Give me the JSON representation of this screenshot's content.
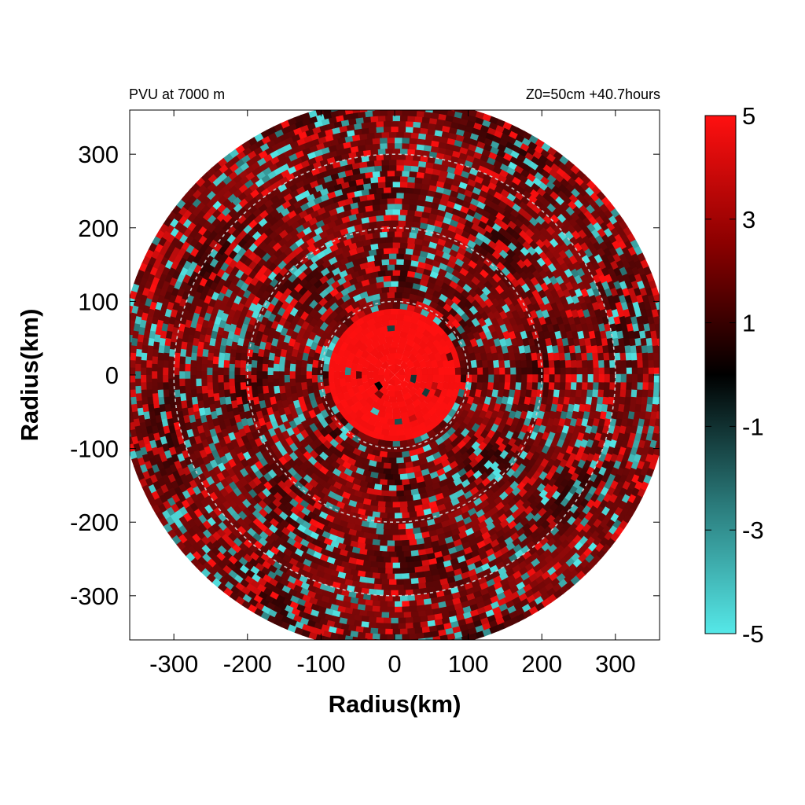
{
  "chart_data": {
    "type": "heatmap",
    "title_left": "PVU at  7000 m",
    "title_right": "Z0=50cm  +40.7hours",
    "xlabel": "Radius(km)",
    "ylabel": "Radius(km)",
    "xlim": [
      -360,
      360
    ],
    "ylim": [
      -360,
      360
    ],
    "x_ticks": [
      -300,
      -200,
      -100,
      0,
      100,
      200,
      300
    ],
    "y_ticks": [
      300,
      200,
      100,
      0,
      -100,
      -200,
      -300
    ],
    "grid": false,
    "domain_radius_km": 375,
    "range_rings_km": [
      100,
      200,
      300
    ],
    "colorbar": {
      "min": -5,
      "max": 5,
      "ticks": [
        5,
        3,
        1,
        -1,
        -3,
        -5
      ],
      "color_low": "#55e8e8",
      "color_mid": "#000000",
      "color_high": "#ff1010",
      "placement": "right"
    },
    "field_description": {
      "core_radius_km": 90,
      "core_value": 5,
      "background_value": 1.6
    }
  }
}
